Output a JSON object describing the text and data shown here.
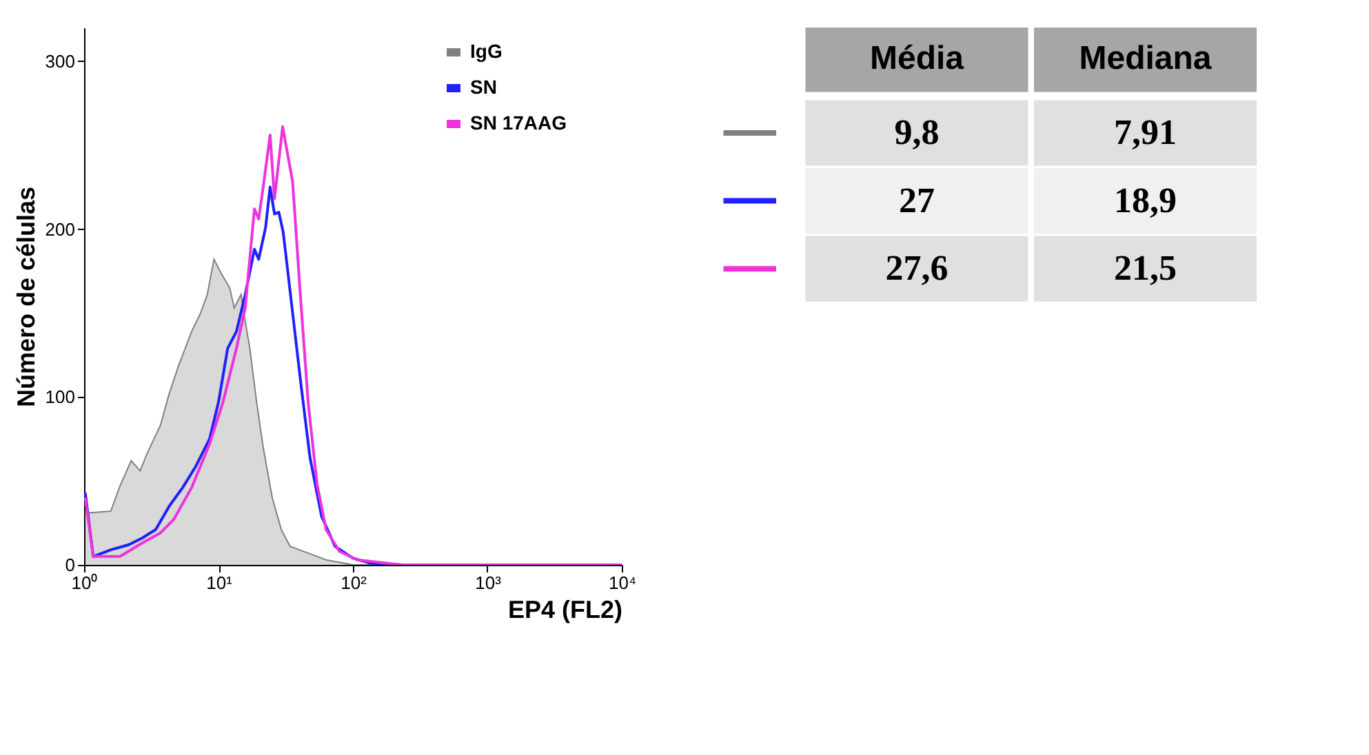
{
  "chart_data": [
    {
      "type": "line",
      "ylabel": "Número de células",
      "xlabel": "EP4 (FL2)",
      "log": "x",
      "xlim": [
        1,
        10000
      ],
      "xticks": [
        {
          "value": 1,
          "label": "10⁰"
        },
        {
          "value": 10,
          "label": "10¹"
        },
        {
          "value": 100,
          "label": "10²"
        },
        {
          "value": 1000,
          "label": "10³"
        },
        {
          "value": 10000,
          "label": "10⁴"
        }
      ],
      "ylim": [
        0,
        320
      ],
      "yticks": [
        0,
        100,
        200,
        300
      ],
      "grid": false,
      "legend": "top right",
      "series": [
        {
          "name": "IgG",
          "type": "area",
          "color": "#808080",
          "x": [
            1.02,
            1.08,
            1.58,
            1.85,
            2.24,
            2.61,
            2.93,
            3.69,
            4.3,
            5.01,
            6.31,
            7.36,
            8.25,
            9.26,
            10.4,
            12.1,
            13.1,
            14.7,
            15.8,
            17.1,
            19.2,
            21.5,
            25.1,
            29.3,
            34.1,
            46.4,
            63.1,
            100,
            10000
          ],
          "values": [
            32,
            31,
            32,
            47,
            62,
            56,
            66,
            83,
            102,
            118,
            139,
            150,
            161,
            182,
            174,
            165,
            153,
            161,
            145,
            129,
            97,
            70,
            40,
            21,
            11,
            7,
            3,
            0,
            0
          ]
        },
        {
          "name": "SN",
          "color": "#2020ff",
          "x": [
            1.02,
            1.17,
            1.58,
            2.15,
            2.71,
            3.41,
            4.3,
            5.41,
            6.81,
            8.58,
            10,
            11.7,
            13.6,
            15.8,
            18.5,
            19.9,
            22.4,
            24.2,
            26.1,
            28.1,
            30.3,
            35.6,
            41.4,
            47.9,
            58.4,
            73.6,
            100,
            135,
            232,
            10000
          ],
          "values": [
            43,
            5,
            9,
            12,
            16,
            21,
            35,
            46,
            59,
            75,
            97,
            129,
            139,
            161,
            188,
            182,
            201,
            225,
            209,
            210,
            198,
            150,
            105,
            64,
            29,
            11,
            4,
            1,
            0,
            0
          ]
        },
        {
          "name": "SN 17AAG",
          "color": "#ee33dd",
          "x": [
            1.02,
            1.17,
            1.85,
            2.71,
            3.69,
            4.64,
            6.31,
            8.58,
            10.8,
            13.6,
            15.8,
            18.5,
            19.9,
            21.5,
            24.2,
            26.1,
            30,
            35.6,
            40.2,
            46.4,
            54.1,
            63.1,
            79.4,
            108,
            232,
            10000
          ],
          "values": [
            40,
            5,
            5,
            13,
            19,
            27,
            46,
            72,
            97,
            129,
            153,
            212,
            206,
            225,
            256,
            218,
            261,
            228,
            166,
            97,
            48,
            21,
            8,
            3,
            0,
            0
          ]
        }
      ]
    },
    {
      "type": "other",
      "categories": [
        "Média",
        "Mediana"
      ],
      "annotations": [
        "9,8",
        "7,91",
        "27",
        "18,9",
        "27,6",
        "21,5"
      ]
    }
  ]
}
